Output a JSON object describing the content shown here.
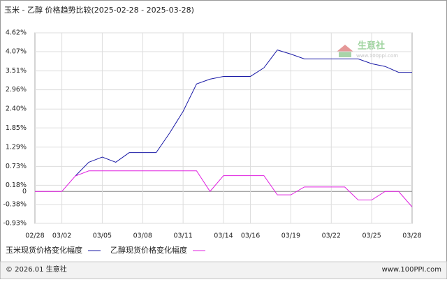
{
  "chart_data": {
    "type": "line",
    "title": "玉米 - 乙醇 价格趋势比较(2025-02-28 - 2025-03-28)",
    "categories": [
      "02/28",
      null,
      "03/02",
      null,
      null,
      "03/05",
      null,
      null,
      "03/08",
      null,
      null,
      "03/11",
      null,
      null,
      "03/14",
      null,
      "03/16",
      null,
      null,
      "03/19",
      null,
      null,
      "03/22",
      null,
      null,
      "03/25",
      null,
      null,
      "03/28"
    ],
    "series": [
      {
        "name": "玉米现货价格变化幅度",
        "color": "#1a1aa6",
        "values": [
          null,
          null,
          null,
          0.45,
          0.85,
          1.0,
          0.85,
          1.13,
          1.13,
          1.13,
          1.7,
          2.33,
          3.13,
          3.27,
          3.35,
          3.35,
          3.35,
          3.6,
          4.12,
          4.0,
          3.86,
          3.86,
          3.86,
          3.86,
          3.86,
          3.72,
          3.64,
          3.47,
          3.47
        ]
      },
      {
        "name": "乙醇现货价格变化幅度",
        "color": "#e020e0",
        "values": [
          0,
          0,
          0,
          0.45,
          0.6,
          0.6,
          0.6,
          0.6,
          0.6,
          0.6,
          0.6,
          0.6,
          0.6,
          0,
          0.46,
          0.46,
          0.46,
          0.46,
          -0.1,
          -0.1,
          0.13,
          0.13,
          0.13,
          0.13,
          -0.25,
          -0.25,
          0,
          0,
          -0.45
        ]
      }
    ],
    "ylim": [
      -0.93,
      4.62
    ],
    "yticks": [
      {
        "value": -0.93,
        "label": "-0.93%"
      },
      {
        "value": -0.38,
        "label": "-0.38%"
      },
      0,
      {
        "value": 0.18,
        "label": "0.18%"
      },
      {
        "value": 0.73,
        "label": "0.73%"
      },
      {
        "value": 1.29,
        "label": "1.29%"
      },
      {
        "value": 1.85,
        "label": "1.85%"
      },
      {
        "value": 2.4,
        "label": "2.40%"
      },
      {
        "value": 2.96,
        "label": "2.96%"
      },
      {
        "value": 3.51,
        "label": "3.51%"
      },
      {
        "value": 4.07,
        "label": "4.07%"
      },
      {
        "value": 4.62,
        "label": "4.62%"
      }
    ],
    "grid": true,
    "watermark": {
      "name": "生意社",
      "url": "www.100ppi.com"
    },
    "footer": {
      "copyright": "© 2026.01 生意社",
      "site": "www.100PPI.com"
    }
  }
}
